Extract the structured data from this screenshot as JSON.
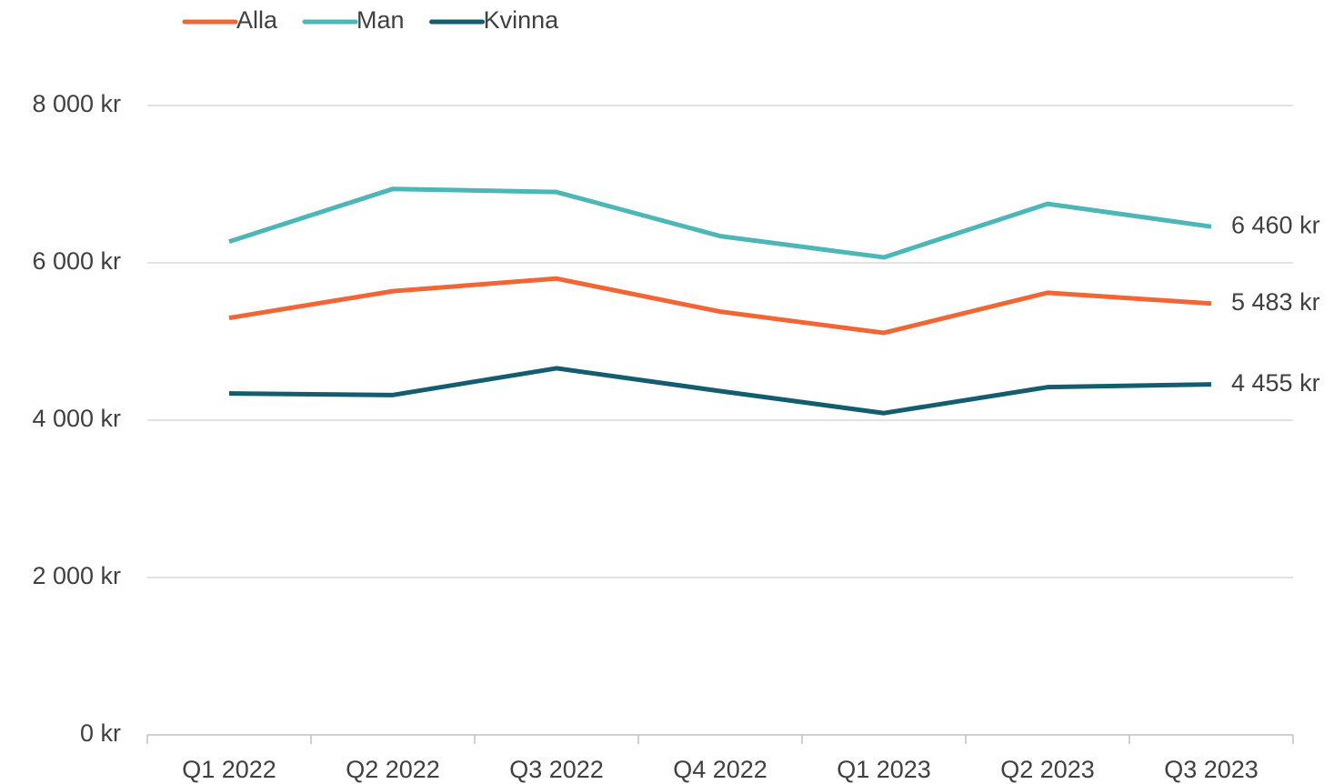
{
  "chart_data": {
    "type": "line",
    "categories": [
      "Q1 2022",
      "Q2 2022",
      "Q3 2022",
      "Q4 2022",
      "Q1 2023",
      "Q2 2023",
      "Q3 2023"
    ],
    "series": [
      {
        "name": "Alla",
        "color": "#f26535",
        "values": [
          5300,
          5640,
          5800,
          5380,
          5110,
          5620,
          5483
        ],
        "value_labels": [
          null,
          null,
          null,
          null,
          null,
          null,
          "5 483 kr"
        ]
      },
      {
        "name": "Man",
        "color": "#4db6b6",
        "values": [
          6270,
          6940,
          6900,
          6340,
          6070,
          6750,
          6460
        ],
        "value_labels": [
          null,
          null,
          null,
          null,
          null,
          null,
          "6 460 kr"
        ]
      },
      {
        "name": "Kvinna",
        "color": "#135e6e",
        "values": [
          4340,
          4320,
          4660,
          4370,
          4090,
          4420,
          4455
        ],
        "value_labels": [
          null,
          null,
          null,
          null,
          null,
          null,
          "4 455 kr"
        ]
      }
    ],
    "ylim": [
      0,
      8000
    ],
    "yticks": [
      {
        "value": 0,
        "label": "0 kr"
      },
      {
        "value": 2000,
        "label": "2 000 kr"
      },
      {
        "value": 4000,
        "label": "4 000 kr"
      },
      {
        "value": 6000,
        "label": "6 000 kr"
      },
      {
        "value": 8000,
        "label": "8 000 kr"
      }
    ],
    "grid": true
  }
}
